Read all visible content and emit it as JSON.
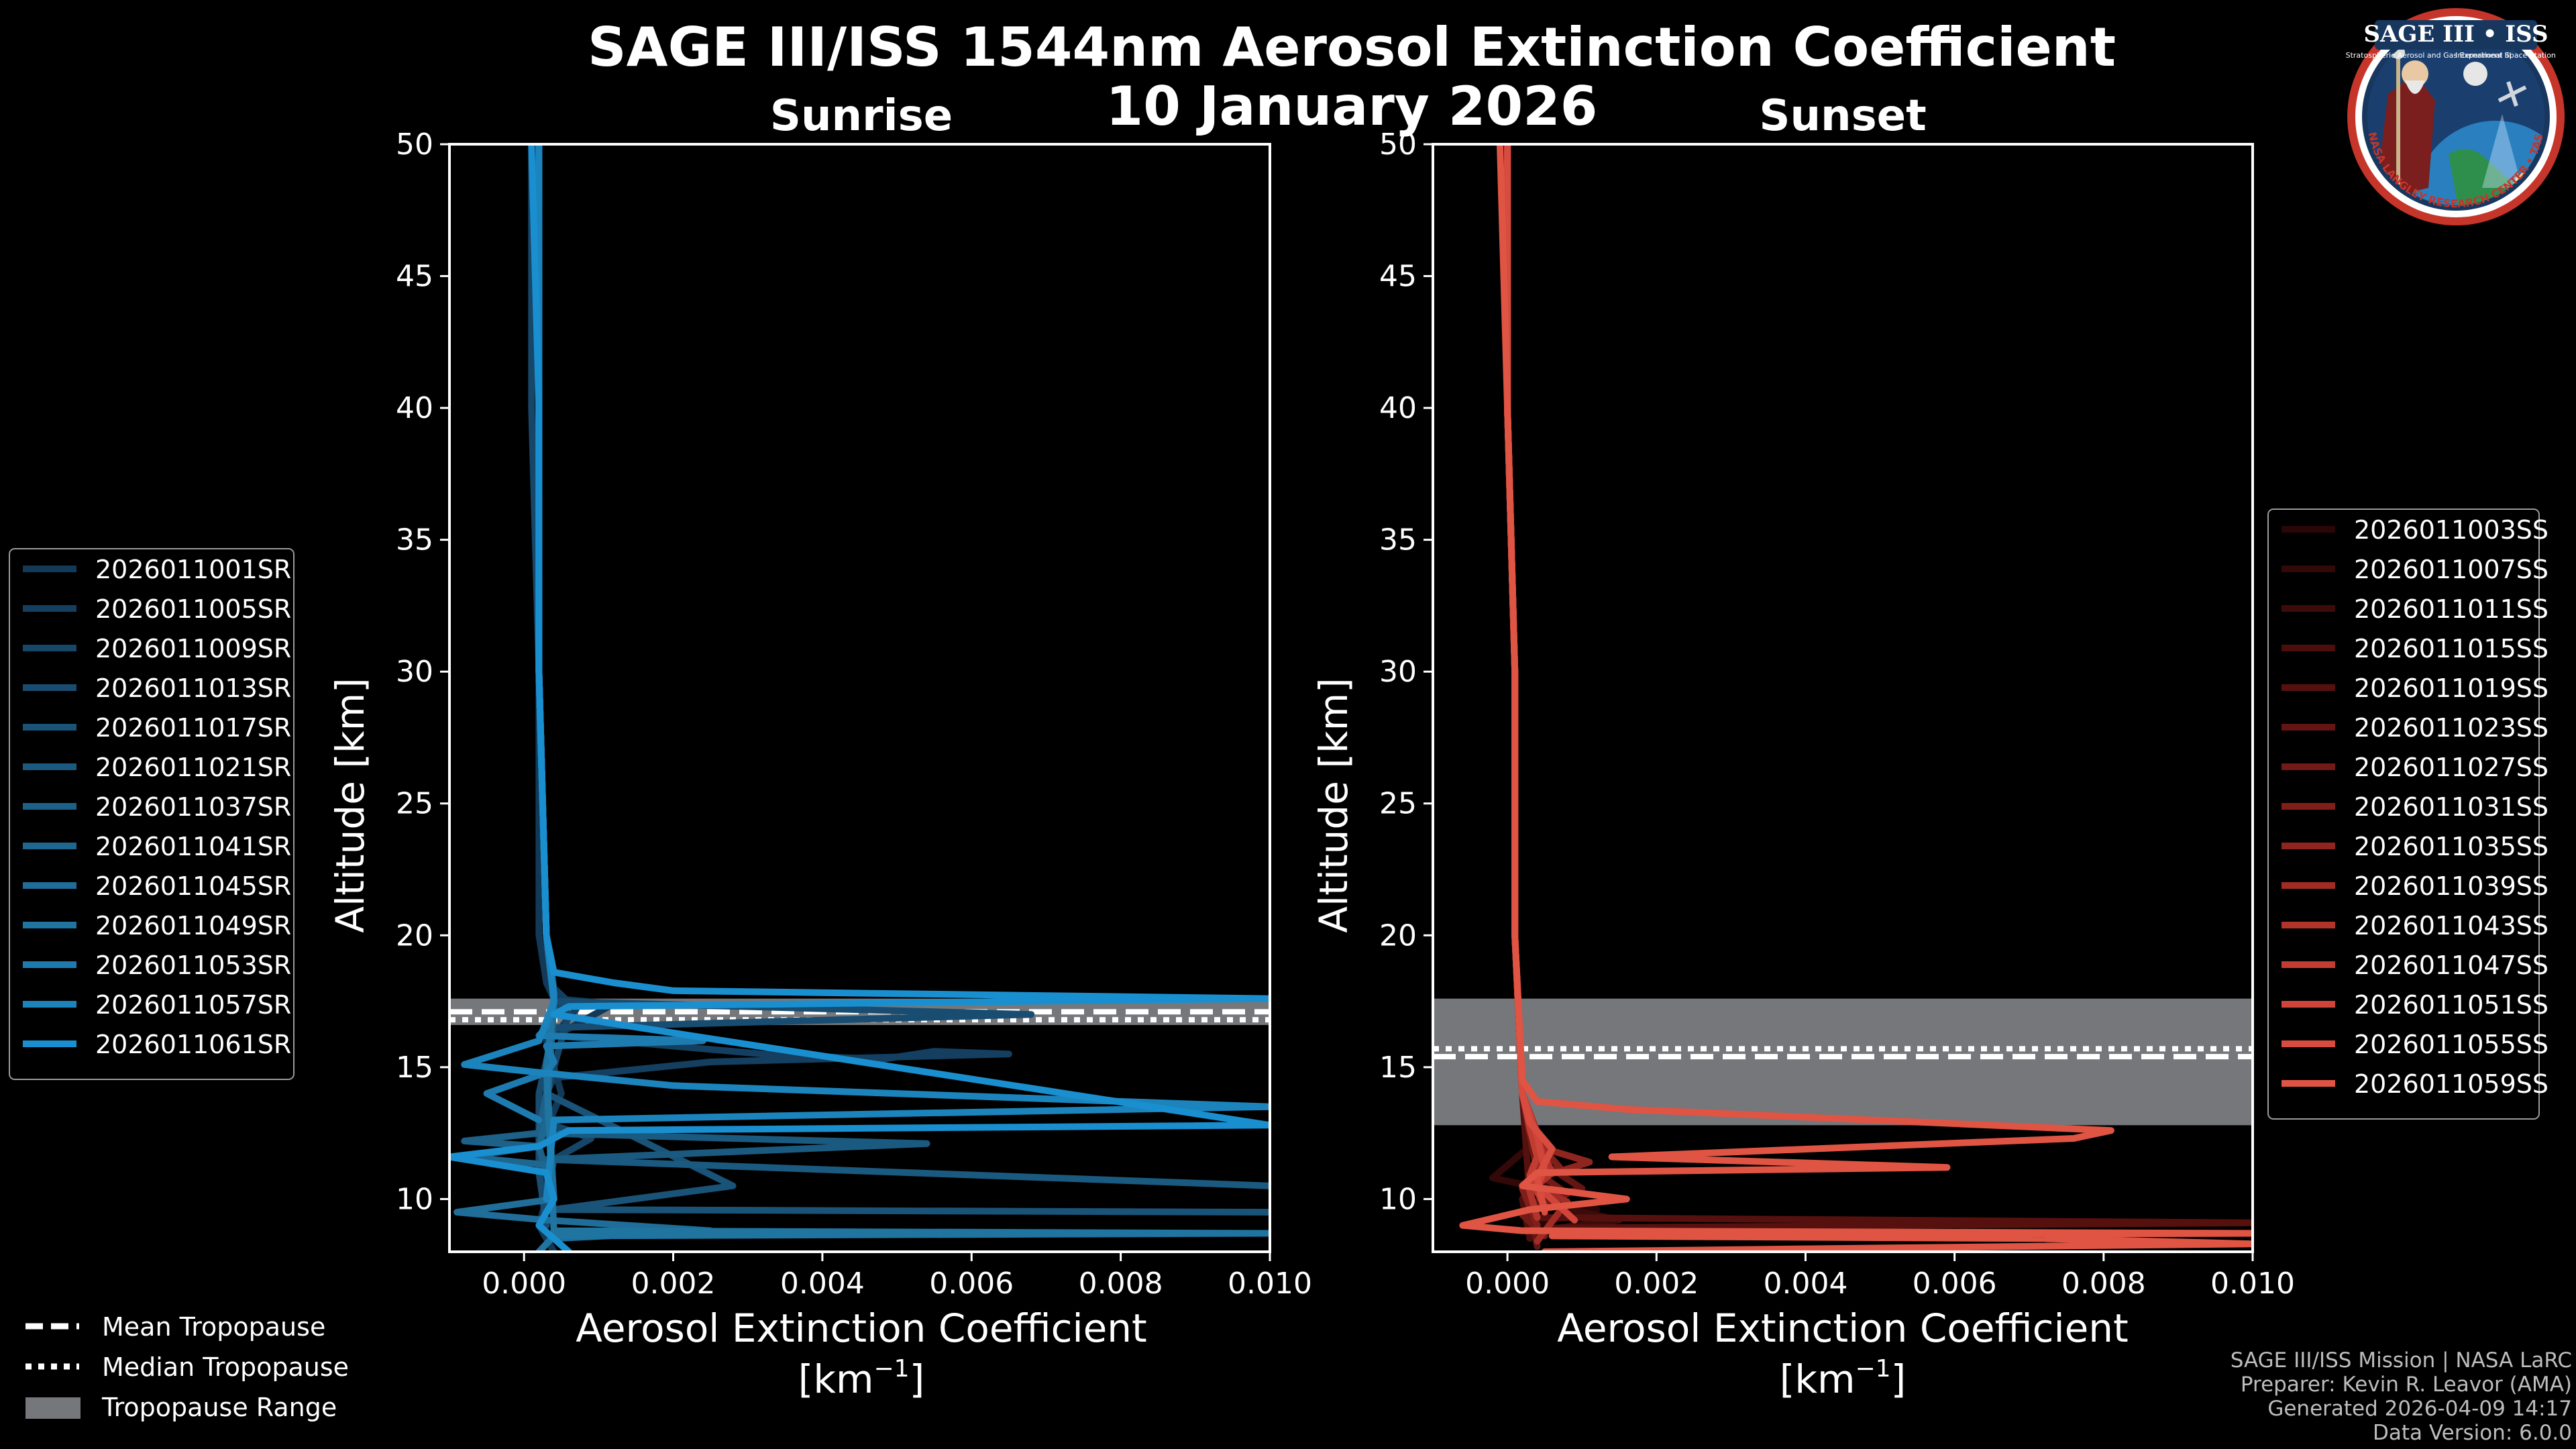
{
  "title": "SAGE III/ISS 1544nm Aerosol Extinction Coefficient",
  "subtitle": "10 January 2026",
  "badge": {
    "title": "SAGE III • ISS",
    "ring_text": "BALL • NASA LANGLEY RESEARCH CENTER • TAS-I • ESA",
    "small_left": "Stratospheric Aerosol and Gas Experiment III",
    "small_right": "International Space Station"
  },
  "credits": [
    "SAGE III/ISS Mission | NASA LaRC",
    "Preparer: Kevin R. Leavor (AMA)",
    "Generated 2026-04-09 14:17",
    "Data Version: 6.0.0"
  ],
  "tropo_legend": {
    "mean": "Mean Tropopause",
    "median": "Median Tropopause",
    "range": "Tropopause Range"
  },
  "colors": {
    "sunrise": "#1a8fd0",
    "sunset": "#e05444",
    "tropo_range": "#76777b"
  },
  "chart_data": [
    {
      "type": "line",
      "title": "Sunrise",
      "xlabel": "Aerosol Extinction Coefficient",
      "xunit_label": "[km",
      "xunit_exp": "−1",
      "xunit_close": "]",
      "ylabel": "Altitude [km]",
      "xlim": [
        -0.001,
        0.01
      ],
      "ylim": [
        8,
        50
      ],
      "xticks": [
        "0.000",
        "0.002",
        "0.004",
        "0.006",
        "0.008",
        "0.010"
      ],
      "xtick_values": [
        0,
        0.002,
        0.004,
        0.006,
        0.008,
        0.01
      ],
      "yticks": [
        "10",
        "15",
        "20",
        "25",
        "30",
        "35",
        "40",
        "45",
        "50"
      ],
      "ytick_values": [
        10,
        15,
        20,
        25,
        30,
        35,
        40,
        45,
        50
      ],
      "tropopause": {
        "mean": 17.1,
        "median": 16.8,
        "range": [
          16.6,
          17.6
        ]
      },
      "series": [
        {
          "name": "2026011001SR",
          "color": "#123a58",
          "x": [
            0.0002,
            0.0002,
            0.0002,
            0.0002,
            0.0002,
            0.0003,
            0.0004,
            0.0012,
            0.0003,
            0.0005,
            0.0002,
            0.0003,
            0.0002,
            0.0004
          ],
          "y": [
            50,
            40,
            30,
            25,
            20,
            18.2,
            17.6,
            17.4,
            16,
            14,
            12,
            10,
            9,
            8
          ]
        },
        {
          "name": "2026011005SR",
          "color": "#143f60",
          "x": [
            0.0002,
            0.0002,
            0.0002,
            0.0003,
            0.0004,
            0.0007,
            0.0004,
            0.0032,
            0.0048,
            0.0055,
            0.0065,
            0.0025,
            0.0004,
            0.0003
          ],
          "y": [
            50,
            40,
            30,
            20,
            18,
            17.2,
            16.2,
            15.5,
            15.3,
            15.6,
            15.5,
            15.2,
            14.6,
            14
          ]
        },
        {
          "name": "2026011009SR",
          "color": "#164668",
          "x": [
            0.0001,
            0.0001,
            0.0002,
            0.0003,
            0.0004,
            0.0006,
            0.0004,
            0.0002,
            0.0009,
            0.0004,
            0.0003
          ],
          "y": [
            50,
            40,
            30,
            20,
            17.5,
            17,
            15,
            13,
            12.3,
            11.5,
            10
          ]
        },
        {
          "name": "2026011013SR",
          "color": "#184c70",
          "x": [
            0.0002,
            0.0002,
            0.0002,
            0.0003,
            0.0004,
            0.0068,
            0.0004,
            0.0002,
            0.0002,
            0.0003
          ],
          "y": [
            50,
            40,
            30,
            20,
            17.5,
            17,
            16.5,
            14,
            11,
            9
          ]
        },
        {
          "name": "2026011017SR",
          "color": "#1a5378",
          "x": [
            0.0002,
            0.0002,
            0.0002,
            0.0003,
            0.0004,
            0.0003,
            0.0028,
            0.0004,
            0.01
          ],
          "y": [
            50,
            40,
            30,
            20,
            17.5,
            14,
            10.5,
            9.6,
            9.5
          ]
        },
        {
          "name": "2026011021SR",
          "color": "#1b5a80",
          "x": [
            0.0002,
            0.0002,
            0.0002,
            0.0003,
            0.0004,
            0.0003,
            0.0002,
            0.0054,
            0.0003,
            0.01
          ],
          "y": [
            50,
            40,
            30,
            20,
            17.5,
            13,
            12.5,
            12.1,
            11.5,
            10.5
          ]
        },
        {
          "name": "2026011037SR",
          "color": "#1d6088",
          "x": [
            0.0002,
            0.0002,
            0.0002,
            0.0003,
            0.0004,
            0.0003,
            0.0002,
            -0.0008,
            0.0002,
            0.0003
          ],
          "y": [
            50,
            40,
            30,
            20,
            17.5,
            14,
            12.5,
            12.2,
            12,
            11
          ]
        },
        {
          "name": "2026011041SR",
          "color": "#1e6790",
          "x": [
            0.0002,
            0.0002,
            0.0002,
            0.0003,
            0.0004,
            0.0003,
            0.0002,
            -0.0008,
            0.0003,
            0.0004
          ],
          "y": [
            50,
            40,
            30,
            20,
            17.5,
            13,
            12,
            11.6,
            11.3,
            10
          ]
        },
        {
          "name": "2026011045SR",
          "color": "#1f6d98",
          "x": [
            0.0002,
            0.0002,
            0.0002,
            0.0003,
            0.0004,
            0.0003,
            0.0004,
            -0.0009,
            0.0003,
            0.0025,
            0.0004
          ],
          "y": [
            50,
            40,
            30,
            20,
            17.5,
            15,
            10,
            9.5,
            9.2,
            8.8,
            8.5
          ]
        },
        {
          "name": "2026011049SR",
          "color": "#1f74a0",
          "x": [
            0.0002,
            0.0002,
            0.0002,
            0.0003,
            0.0004,
            0.0003,
            0.0004,
            0.01,
            0.0004,
            0.0002
          ],
          "y": [
            50,
            40,
            30,
            20,
            17.5,
            15,
            8.8,
            8.7,
            8.6,
            8
          ]
        },
        {
          "name": "2026011053SR",
          "color": "#1e7bb0",
          "x": [
            0.0002,
            0.0002,
            0.0002,
            0.0003,
            0.0004,
            0.0003,
            0.0002,
            0.0024,
            0.0003,
            0.0004,
            0.0003,
            -0.0005,
            0.0002
          ],
          "y": [
            50,
            40,
            30,
            20,
            17.5,
            16.5,
            16.2,
            16,
            15.8,
            15.2,
            14.8,
            14,
            13
          ]
        },
        {
          "name": "2026011057SR",
          "color": "#1c84bd",
          "x": [
            0.0002,
            0.0002,
            0.0002,
            0.0003,
            0.0004,
            0.0004,
            0.0002,
            -0.0008,
            0.0002,
            0.002,
            0.01,
            0.0004,
            0.0003
          ],
          "y": [
            50,
            40,
            30,
            20,
            17.8,
            17.5,
            16,
            15.1,
            14.8,
            14.3,
            13.5,
            13,
            10
          ]
        },
        {
          "name": "2026011061SR",
          "color": "#1a8fd0",
          "x": [
            0.0001,
            0.0002,
            0.0002,
            0.0003,
            0.0004,
            0.0012,
            0.002,
            0.01,
            0.0006,
            0.0004,
            0.01,
            0.0006,
            0.0002,
            -0.001,
            0.0003,
            0.0004,
            0.0002,
            0.0006
          ],
          "y": [
            50,
            40,
            30,
            20,
            18.6,
            18.2,
            17.9,
            17.6,
            17.3,
            17,
            12.8,
            12.6,
            12,
            11.6,
            11,
            10,
            9,
            8
          ]
        }
      ]
    },
    {
      "type": "line",
      "title": "Sunset",
      "xlabel": "Aerosol Extinction Coefficient",
      "xunit_label": "[km",
      "xunit_exp": "−1",
      "xunit_close": "]",
      "ylabel": "Altitude [km]",
      "xlim": [
        -0.001,
        0.01
      ],
      "ylim": [
        8,
        50
      ],
      "xticks": [
        "0.000",
        "0.002",
        "0.004",
        "0.006",
        "0.008",
        "0.010"
      ],
      "xtick_values": [
        0,
        0.002,
        0.004,
        0.006,
        0.008,
        0.01
      ],
      "yticks": [
        "10",
        "15",
        "20",
        "25",
        "30",
        "35",
        "40",
        "45",
        "50"
      ],
      "ytick_values": [
        10,
        15,
        20,
        25,
        30,
        35,
        40,
        45,
        50
      ],
      "tropopause": {
        "mean": 15.4,
        "median": 15.7,
        "range": [
          12.8,
          17.6
        ]
      },
      "series": [
        {
          "name": "2026011003SS",
          "color": "#2a0606",
          "x": [
            0,
            0,
            0.0001,
            0.0001,
            0.0002,
            0.0004,
            0.0002,
            0.0012,
            0.0003
          ],
          "y": [
            50,
            40,
            30,
            20,
            14,
            11,
            10,
            9.6,
            9
          ]
        },
        {
          "name": "2026011007SS",
          "color": "#330808",
          "x": [
            0,
            0,
            0.0001,
            0.0001,
            0.0002,
            0.0003,
            -0.0002,
            0.0008,
            0.0002
          ],
          "y": [
            50,
            40,
            30,
            20,
            14,
            12,
            10.8,
            10.2,
            9.5
          ]
        },
        {
          "name": "2026011011SS",
          "color": "#3e0b0b",
          "x": [
            0,
            0,
            0.0001,
            0.0001,
            0.0002,
            0.0005,
            0.0002,
            0.0015,
            0.0004
          ],
          "y": [
            50,
            40,
            30,
            20,
            14,
            10.5,
            10,
            9.2,
            8.8
          ]
        },
        {
          "name": "2026011015SS",
          "color": "#4a0e0d",
          "x": [
            0,
            0,
            0.0001,
            0.0001,
            0.0002,
            0.0003,
            0.0006,
            0.0002,
            0.0003
          ],
          "y": [
            50,
            40,
            30,
            20,
            14,
            12,
            11,
            10,
            8.5
          ]
        },
        {
          "name": "2026011019SS",
          "color": "#56110f",
          "x": [
            0,
            0,
            0.0001,
            0.0001,
            0.0002,
            0.0003,
            0.0004,
            0.01,
            0.0006
          ],
          "y": [
            50,
            40,
            30,
            20,
            14,
            10,
            9.3,
            9.1,
            8.9
          ]
        },
        {
          "name": "2026011023SS",
          "color": "#621512",
          "x": [
            0,
            0,
            0.0001,
            0.0001,
            0.0002,
            0.0004,
            0.001,
            0.0003,
            0.0004
          ],
          "y": [
            50,
            40,
            30,
            20,
            14,
            11.5,
            10.4,
            9.8,
            8.2
          ]
        },
        {
          "name": "2026011027SS",
          "color": "#711a16",
          "x": [
            0,
            0,
            0.0001,
            0.0001,
            0.0002,
            0.0004,
            0.0008,
            0.0002,
            0.0005
          ],
          "y": [
            50,
            40,
            30,
            20,
            14,
            11,
            10.2,
            9.4,
            8.6
          ]
        },
        {
          "name": "2026011031SS",
          "color": "#801f1a",
          "x": [
            0,
            0,
            0.0001,
            0.0001,
            0.0002,
            0.0003,
            0.0007,
            0.0002,
            0.0004
          ],
          "y": [
            50,
            40,
            30,
            20,
            14,
            12.5,
            11.2,
            10.4,
            9
          ]
        },
        {
          "name": "2026011035SS",
          "color": "#8f251f",
          "x": [
            0,
            0,
            0.0001,
            0.0001,
            0.0002,
            0.0004,
            0.0011,
            0.0003,
            0.0005
          ],
          "y": [
            50,
            40,
            30,
            20,
            14,
            12,
            11.4,
            10.7,
            9.8
          ]
        },
        {
          "name": "2026011039SS",
          "color": "#a02c25",
          "x": [
            0,
            0,
            0.0001,
            0.0001,
            0.0002,
            0.0005,
            0.0003,
            0.0008,
            0.0004
          ],
          "y": [
            50,
            40,
            30,
            20,
            14,
            11.8,
            10.6,
            9.9,
            8.4
          ]
        },
        {
          "name": "2026011043SS",
          "color": "#b1342b",
          "x": [
            0,
            0,
            0.0001,
            0.0001,
            0.0002,
            0.0004,
            0.0006,
            0.0003,
            0.0004
          ],
          "y": [
            50,
            40,
            30,
            20,
            14,
            12.2,
            11,
            10.3,
            9.3
          ]
        },
        {
          "name": "2026011047SS",
          "color": "#c13d32",
          "x": [
            0,
            0,
            0.0001,
            0.0001,
            0.0002,
            0.0003,
            0.0004,
            0.0003,
            0.0005
          ],
          "y": [
            50,
            40,
            30,
            20,
            14,
            12.7,
            11.6,
            10.9,
            9.7
          ]
        },
        {
          "name": "2026011051SS",
          "color": "#cf4539",
          "x": [
            0,
            0,
            0.0001,
            0.0001,
            0.0002,
            0.0004,
            0.0005,
            0.0004,
            0.0009
          ],
          "y": [
            50,
            40,
            30,
            20,
            14,
            12.4,
            11.1,
            10.5,
            9.2
          ]
        },
        {
          "name": "2026011055SS",
          "color": "#d84c3f",
          "x": [
            0,
            0,
            0.0001,
            0.0001,
            0.0002,
            0.0003,
            0.0006,
            0.0004,
            0.0005
          ],
          "y": [
            50,
            40,
            30,
            20,
            14,
            12.9,
            11.9,
            10.8,
            9.5
          ]
        },
        {
          "name": "2026011059SS",
          "color": "#e05444",
          "x": [
            -0.0001,
            0,
            0.0001,
            0.0001,
            0.0002,
            0.0004,
            0.0016,
            0.0081,
            0.0076,
            0.0014,
            0.0059,
            0.0004,
            0.0002,
            0.0016,
            0.0003,
            -0.0006,
            0.0002,
            0.01,
            0.0006,
            0.0072,
            0.01,
            0.0005
          ],
          "y": [
            50,
            40,
            30,
            20,
            14.5,
            13.7,
            13.4,
            12.6,
            12.3,
            11.6,
            11.2,
            11,
            10.5,
            10,
            9.6,
            9,
            8.8,
            8.7,
            8.6,
            8.5,
            8.3,
            8
          ]
        }
      ]
    }
  ]
}
